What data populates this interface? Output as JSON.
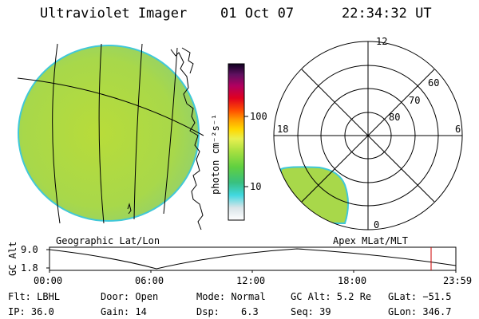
{
  "header": {
    "title": "Ultraviolet Imager",
    "date": "01 Oct 07",
    "time": "22:34:32 UT"
  },
  "colorbar": {
    "unit_label": "photon cm⁻²s⁻¹",
    "ticks": [
      "100",
      "10"
    ]
  },
  "panels": {
    "left_label": "Geographic Lat/Lon",
    "right_label": "Apex MLat/MLT"
  },
  "polar": {
    "mlt_labels": [
      "12",
      "18",
      "6",
      "0"
    ],
    "lat_labels": [
      "60",
      "70",
      "80"
    ]
  },
  "altitude_plot": {
    "ylabel": "GC Alt",
    "yticks": [
      "9.0",
      "1.8"
    ],
    "xticks": [
      "00:00",
      "06:00",
      "12:00",
      "18:00",
      "23:59"
    ],
    "marker_color": "#cc0000",
    "line_color": "#000000"
  },
  "info": {
    "flt": "Flt: LBHL",
    "ip": "IP: 36.0",
    "door": "Door: Open",
    "gain": "Gain: 14",
    "mode": "Mode: Normal",
    "dsp_label": "Dsp:",
    "dsp_value": "6.3",
    "gcalt": "GC Alt: 5.2 Re",
    "seq": "Seq: 39",
    "glat": "GLat: −51.5",
    "glon": "GLon: 346.7"
  }
}
